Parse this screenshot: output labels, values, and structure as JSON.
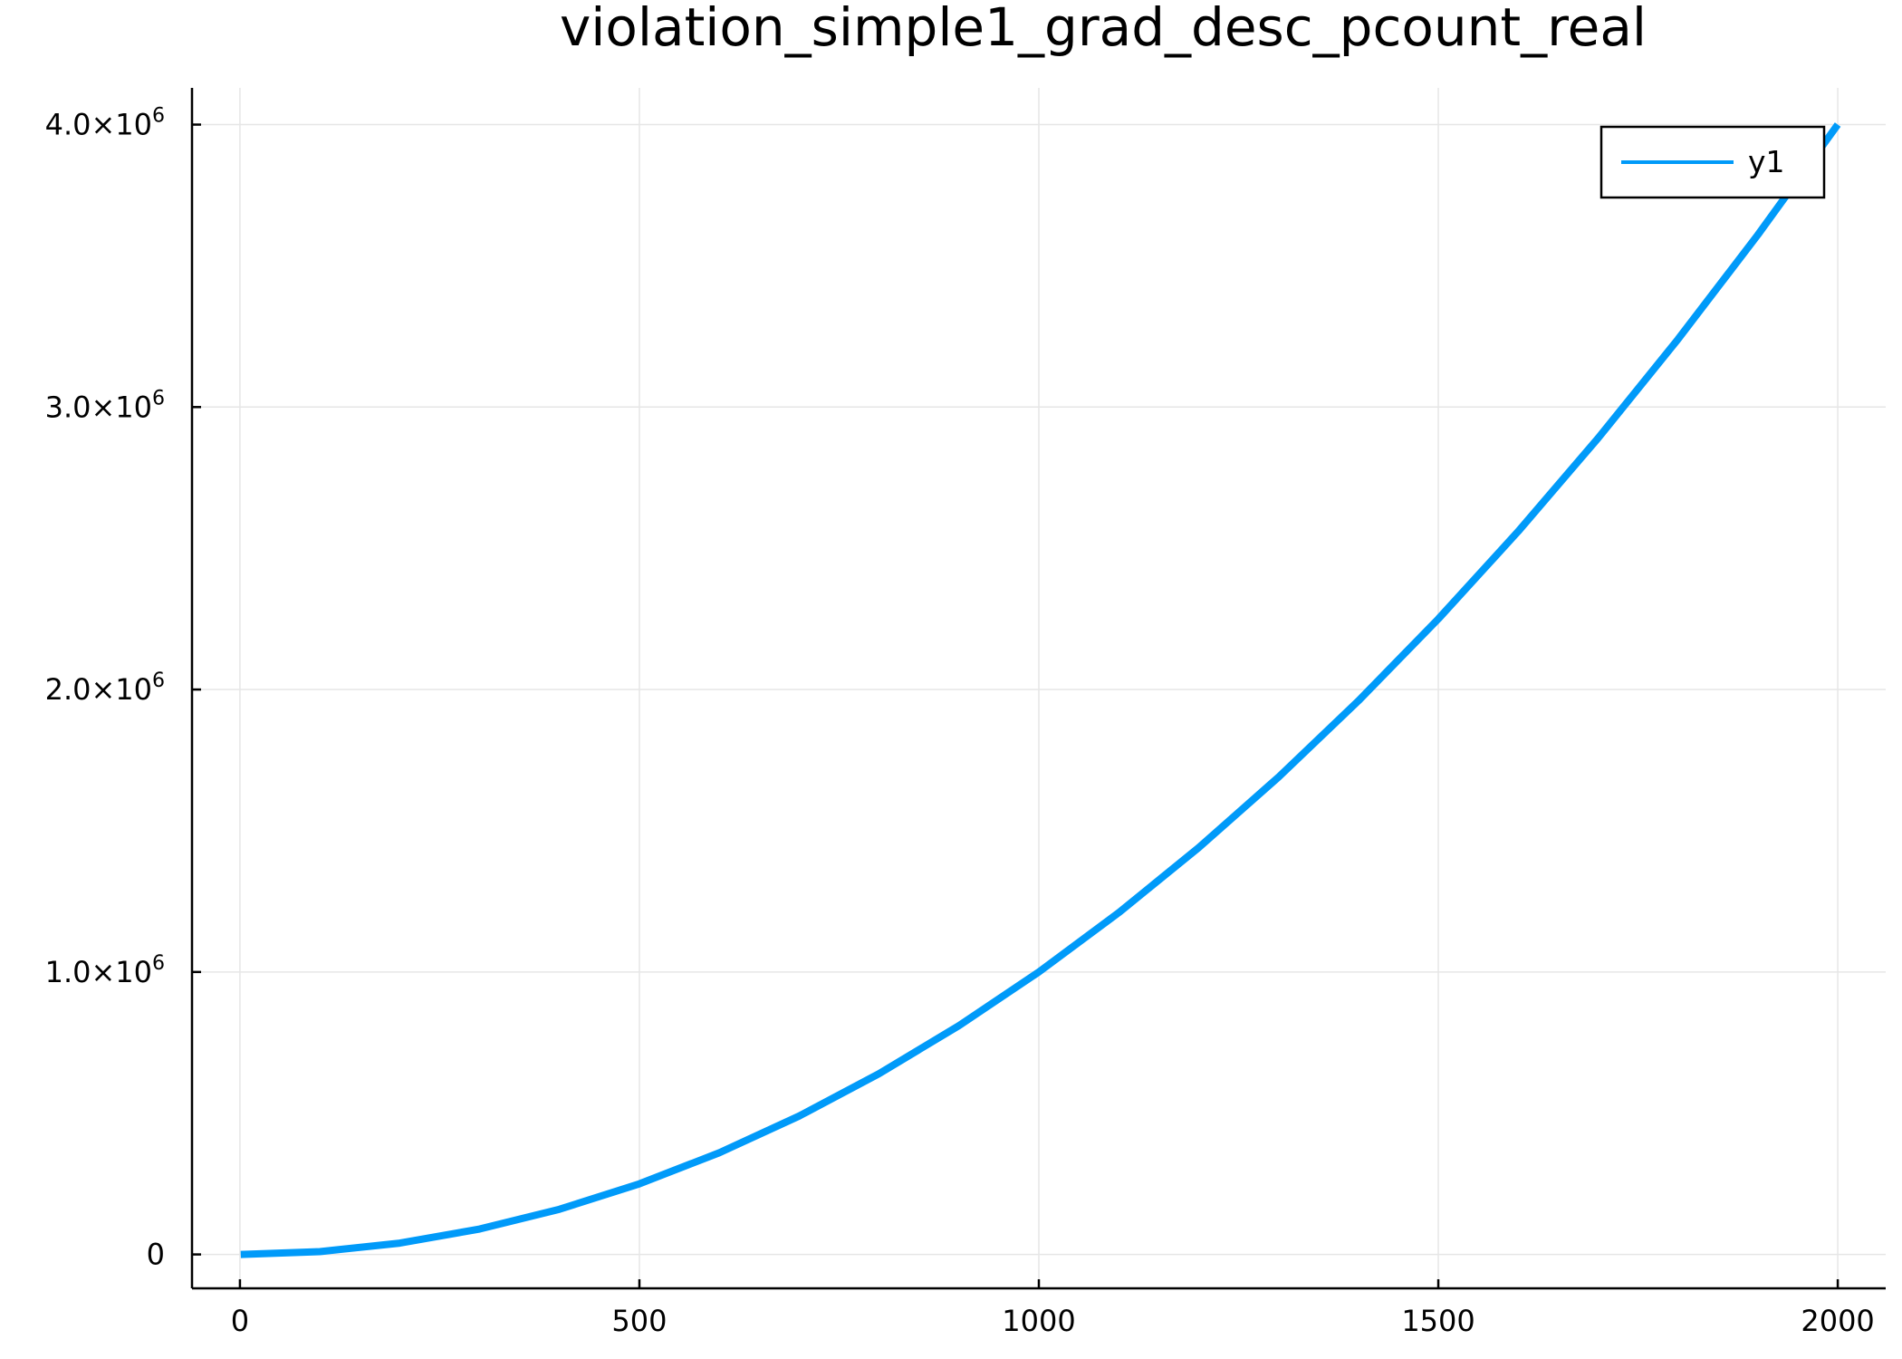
{
  "chart_data": {
    "type": "line",
    "title": "violation_simple1_grad_desc_pcount_real",
    "xlabel": "",
    "ylabel": "",
    "xlim": [
      -60,
      2060
    ],
    "ylim": [
      -120000,
      4130000
    ],
    "grid": true,
    "legend_position": "top-right",
    "x_ticks": [
      {
        "value": 0,
        "label": "0"
      },
      {
        "value": 500,
        "label": "500"
      },
      {
        "value": 1000,
        "label": "1000"
      },
      {
        "value": 1500,
        "label": "1500"
      },
      {
        "value": 2000,
        "label": "2000"
      }
    ],
    "y_ticks": [
      {
        "value": 0,
        "mantissa": "0",
        "exponent": ""
      },
      {
        "value": 1000000,
        "mantissa": "1.0×10",
        "exponent": "6"
      },
      {
        "value": 2000000,
        "mantissa": "2.0×10",
        "exponent": "6"
      },
      {
        "value": 3000000,
        "mantissa": "3.0×10",
        "exponent": "6"
      },
      {
        "value": 4000000,
        "mantissa": "4.0×10",
        "exponent": "6"
      }
    ],
    "series": [
      {
        "name": "y1",
        "color": "#009af9",
        "x": [
          1,
          100,
          200,
          300,
          400,
          500,
          600,
          700,
          800,
          900,
          1000,
          1100,
          1200,
          1300,
          1400,
          1500,
          1600,
          1700,
          1800,
          1900,
          2000
        ],
        "y": [
          1,
          10000,
          40000,
          90000,
          160000,
          250000,
          360000,
          490000,
          640000,
          810000,
          1000000,
          1210000,
          1440000,
          1690000,
          1960000,
          2250000,
          2560000,
          2890000,
          3240000,
          3610000,
          4000000
        ]
      }
    ]
  }
}
